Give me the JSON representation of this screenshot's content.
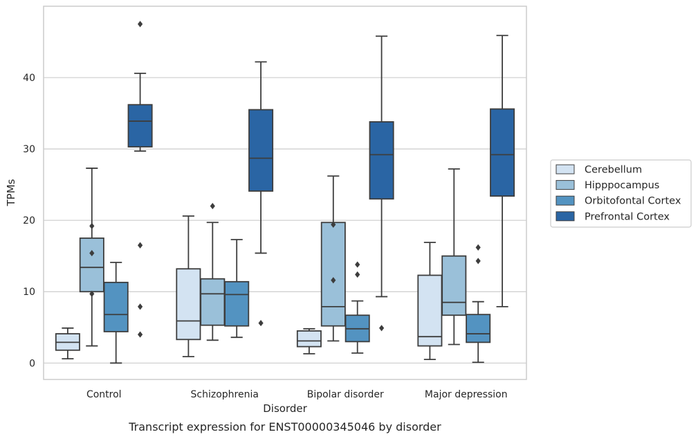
{
  "chart_data": {
    "type": "box",
    "title": "",
    "caption": "Transcript expression for ENST00000345046 by disorder",
    "xlabel": "Disorder",
    "ylabel": "TPMs",
    "ylim": [
      -2.3,
      50
    ],
    "yticks": [
      0,
      10,
      20,
      30,
      40
    ],
    "grid": "horizontal",
    "legend_position": "right",
    "categories": [
      "Control",
      "Schizophrenia",
      "Bipolar disorder",
      "Major depression"
    ],
    "series": [
      {
        "name": "Cerebellum",
        "color": "#d3e3f2",
        "boxes": [
          {
            "whislo": 0.6,
            "q1": 1.8,
            "med": 2.9,
            "q3": 4.1,
            "whishi": 4.9,
            "fliers": []
          },
          {
            "whislo": 0.9,
            "q1": 3.3,
            "med": 5.9,
            "q3": 13.2,
            "whishi": 20.6,
            "fliers": []
          },
          {
            "whislo": 1.3,
            "q1": 2.3,
            "med": 3.1,
            "q3": 4.5,
            "whishi": 4.8,
            "fliers": []
          },
          {
            "whislo": 0.5,
            "q1": 2.4,
            "med": 3.7,
            "q3": 12.3,
            "whishi": 16.9,
            "fliers": []
          }
        ]
      },
      {
        "name": "Hipppocampus",
        "color": "#9ac0d9",
        "boxes": [
          {
            "whislo": 2.4,
            "q1": 10.0,
            "med": 13.4,
            "q3": 17.5,
            "whishi": 27.3,
            "fliers": [
              9.7,
              15.4,
              19.2
            ]
          },
          {
            "whislo": 3.2,
            "q1": 5.3,
            "med": 9.7,
            "q3": 11.8,
            "whishi": 19.7,
            "fliers": [
              22.0
            ]
          },
          {
            "whislo": 3.1,
            "q1": 5.2,
            "med": 7.9,
            "q3": 19.7,
            "whishi": 26.2,
            "fliers": [
              11.6,
              19.4
            ]
          },
          {
            "whislo": 2.6,
            "q1": 6.7,
            "med": 8.5,
            "q3": 15.0,
            "whishi": 27.2,
            "fliers": []
          }
        ]
      },
      {
        "name": "Orbitofontal Cortex",
        "color": "#5393c1",
        "boxes": [
          {
            "whislo": 0.0,
            "q1": 4.4,
            "med": 6.8,
            "q3": 11.3,
            "whishi": 14.1,
            "fliers": []
          },
          {
            "whislo": 3.6,
            "q1": 5.2,
            "med": 9.6,
            "q3": 11.4,
            "whishi": 17.3,
            "fliers": []
          },
          {
            "whislo": 1.4,
            "q1": 3.0,
            "med": 4.8,
            "q3": 6.7,
            "whishi": 8.7,
            "fliers": [
              12.4,
              13.8
            ]
          },
          {
            "whislo": 0.1,
            "q1": 2.9,
            "med": 4.1,
            "q3": 6.8,
            "whishi": 8.6,
            "fliers": [
              14.3,
              16.2
            ]
          }
        ]
      },
      {
        "name": "Prefrontal Cortex",
        "color": "#2a65a4",
        "boxes": [
          {
            "whislo": 29.7,
            "q1": 30.3,
            "med": 33.9,
            "q3": 36.2,
            "whishi": 40.6,
            "fliers": [
              47.5,
              16.5,
              7.9,
              4.0
            ]
          },
          {
            "whislo": 15.4,
            "q1": 24.1,
            "med": 28.7,
            "q3": 35.5,
            "whishi": 42.2,
            "fliers": [
              5.6
            ]
          },
          {
            "whislo": 9.3,
            "q1": 23.0,
            "med": 29.2,
            "q3": 33.8,
            "whishi": 45.8,
            "fliers": [
              4.9
            ]
          },
          {
            "whislo": 7.9,
            "q1": 23.4,
            "med": 29.2,
            "q3": 35.6,
            "whishi": 45.9,
            "fliers": []
          }
        ]
      }
    ]
  }
}
